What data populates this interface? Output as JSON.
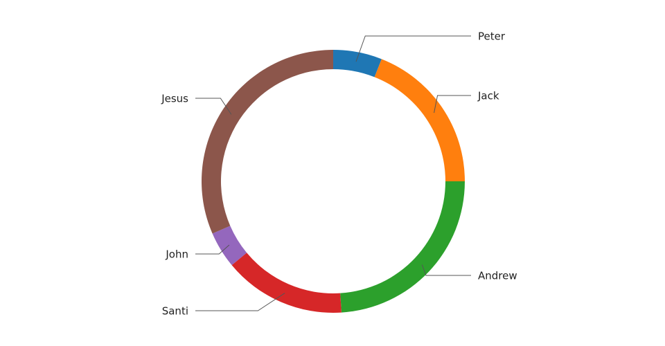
{
  "chart_data": {
    "type": "pie",
    "variant": "donut",
    "title": "",
    "legend": "none",
    "slices": [
      {
        "label": "Peter",
        "value": 6.0,
        "color": "#1f77b4"
      },
      {
        "label": "Jack",
        "value": 19.0,
        "color": "#ff7f0e"
      },
      {
        "label": "Andrew",
        "value": 24.0,
        "color": "#2ca02c"
      },
      {
        "label": "Santi",
        "value": 15.0,
        "color": "#d62728"
      },
      {
        "label": "John",
        "value": 4.5,
        "color": "#9467bd"
      },
      {
        "label": "Jesus",
        "value": 31.5,
        "color": "#8c564b"
      }
    ]
  }
}
